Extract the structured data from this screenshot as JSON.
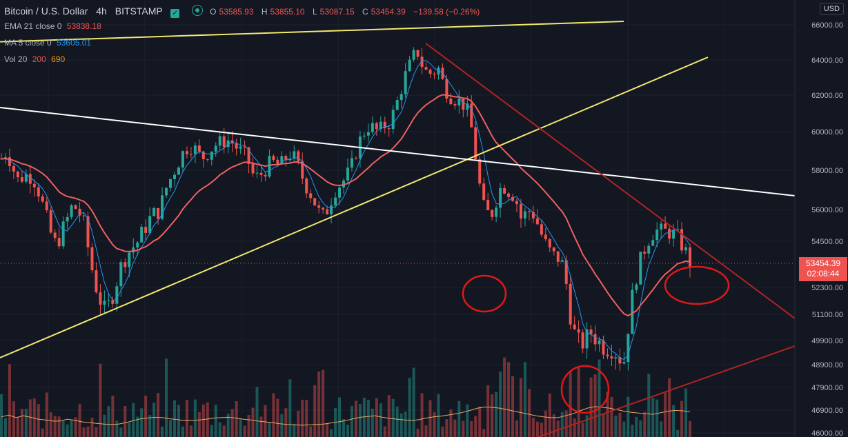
{
  "header": {
    "symbol": "Bitcoin / U.S. Dollar",
    "interval": "4h",
    "exchange": "BITSTAMP",
    "ohlc": {
      "o_label": "O",
      "o": "53585.93",
      "h_label": "H",
      "h": "53855.10",
      "l_label": "L",
      "l": "53087.15",
      "c_label": "C",
      "c": "53454.39",
      "change": "−139.58 (−0.26%)"
    }
  },
  "indicators": {
    "ema": {
      "label": "EMA 21 close 0",
      "value": "53838.18"
    },
    "ma": {
      "label": "MA 5 close 0",
      "value": "53605.01"
    },
    "vol": {
      "label": "Vol 20",
      "v1": "200",
      "v2": "690"
    }
  },
  "currency": "USD",
  "last_price": {
    "price": "53454.39",
    "countdown": "02:08:44"
  },
  "colors": {
    "up": "#26a69a",
    "down": "#ef5350",
    "ema": "#f06060",
    "ma": "#2196f3",
    "yellow": "#f2e86d",
    "white": "#ffffff",
    "darkred": "#b22222",
    "circle": "#e01818"
  },
  "chart_data": {
    "type": "candlestick",
    "y_ticks": [
      "66000.00",
      "64000.00",
      "62000.00",
      "60000.00",
      "58000.00",
      "56000.00",
      "54500.00",
      "52300.00",
      "51100.00",
      "49900.00",
      "48900.00",
      "47900.00",
      "46900.00",
      "46000.00"
    ],
    "y_tick_values": [
      66000,
      64000,
      62000,
      60000,
      58000,
      56000,
      54500,
      52300,
      51100,
      49900,
      48900,
      47900,
      46900,
      46000
    ],
    "close_path": [
      58600,
      59000,
      58200,
      57500,
      57700,
      57800,
      57500,
      56800,
      55800,
      54900,
      54300,
      54900,
      55500,
      56200,
      56000,
      55400,
      54000,
      52600,
      51800,
      51200,
      51700,
      52500,
      53400,
      53900,
      54200,
      54500,
      55000,
      55500,
      55800,
      56000,
      57000,
      57600,
      58200,
      58800,
      59200,
      59300,
      58800,
      58700,
      59000,
      59300,
      59400,
      59600,
      59500,
      59200,
      58900,
      58600,
      57800,
      57600,
      58000,
      58300,
      58400,
      58200,
      58600,
      58900,
      58400,
      57700,
      57100,
      56600,
      55900,
      55600,
      56300,
      57000,
      57300,
      57600,
      58100,
      59100,
      59800,
      60300,
      60200,
      60000,
      60300,
      60500,
      61200,
      62200,
      63200,
      63900,
      64600,
      63700,
      63200,
      63300,
      63500,
      62500,
      62000,
      61800,
      61600,
      61400,
      60200,
      58300,
      56200,
      55800,
      55900,
      57000,
      57200,
      56900,
      56700,
      55600,
      55800,
      56000,
      55400,
      54700,
      54100,
      53800,
      53700,
      53200,
      51200,
      50100,
      49700,
      50000,
      50300,
      49900,
      49700,
      49600,
      49600,
      49200,
      49100,
      51200,
      52700,
      53600,
      54400,
      54900,
      55000,
      54900,
      55000,
      54800,
      54600,
      54100,
      53460
    ],
    "volume_line": [
      530,
      580,
      510,
      560,
      520,
      470,
      450,
      420,
      420,
      470,
      440,
      400,
      380,
      360,
      340,
      330,
      340,
      380,
      430,
      480,
      500,
      520,
      510,
      480,
      460,
      430,
      430,
      450,
      470,
      500,
      510,
      520,
      500,
      470,
      450,
      420,
      400,
      380,
      350,
      330,
      320,
      310,
      320,
      330,
      340,
      370,
      400,
      430,
      480,
      520,
      540,
      560,
      520,
      490,
      470,
      450,
      430,
      460,
      500,
      530,
      550,
      580,
      610,
      650,
      700,
      760,
      790,
      780,
      760,
      720,
      680,
      640,
      600,
      560,
      530,
      510,
      510,
      560,
      610,
      690,
      760,
      800,
      780,
      760,
      720,
      680,
      650,
      630,
      610,
      600,
      640,
      680,
      700,
      690,
      660
    ],
    "lines": [
      {
        "name": "upper-yellow",
        "from": [
          0,
          60.6
        ],
        "to": [
          904,
          31
        ]
      },
      {
        "name": "rising-yellow",
        "from": [
          0,
          519
        ],
        "to": [
          1026,
          83
        ]
      },
      {
        "name": "white-resistance",
        "from": [
          0,
          156
        ],
        "to": [
          1152,
          284
        ]
      },
      {
        "name": "red-downtrend",
        "from": [
          617,
          63
        ],
        "to": [
          1152,
          462
        ]
      },
      {
        "name": "red-support",
        "from": [
          780,
          634
        ],
        "to": [
          1152,
          502
        ]
      }
    ],
    "circles": [
      {
        "cx": 702,
        "cy": 426,
        "rx": 31,
        "ry": 26
      },
      {
        "cx": 848,
        "cy": 565,
        "rx": 34,
        "ry": 34
      },
      {
        "cx": 1010,
        "cy": 414,
        "rx": 46,
        "ry": 27
      }
    ]
  }
}
